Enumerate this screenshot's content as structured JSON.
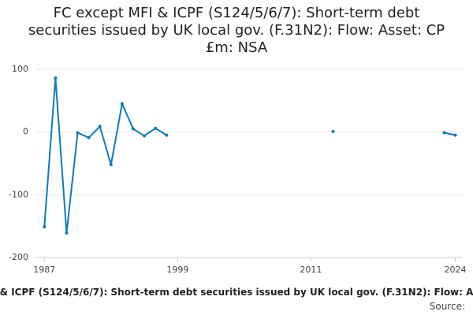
{
  "chart_data": {
    "type": "line",
    "title": "FC except MFI & ICPF (S124/5/6/7): Short-term debt securities issued by UK local gov. (F.31N2): Flow: Asset: CP £m: NSA",
    "caption": "& ICPF (S124/5/6/7): Short-term debt securities issued by UK local gov. (F.31N2): Flow: A",
    "source": "Source:",
    "x": [
      1987,
      1988,
      1989,
      1990,
      1991,
      1992,
      1993,
      1994,
      1995,
      1996,
      1997,
      1998,
      1999,
      2000,
      2001,
      2002,
      2003,
      2004,
      2005,
      2006,
      2007,
      2008,
      2009,
      2010,
      2011,
      2012,
      2013,
      2014,
      2015,
      2016,
      2017,
      2018,
      2019,
      2020,
      2021,
      2022,
      2023,
      2024
    ],
    "series": [
      {
        "color": "#0b7bbd",
        "values": [
          -151,
          86,
          -161,
          -1,
          -9,
          9,
          -52,
          45,
          5,
          -6,
          6,
          -5,
          null,
          null,
          null,
          null,
          null,
          null,
          null,
          null,
          null,
          null,
          null,
          null,
          null,
          null,
          1,
          null,
          null,
          null,
          null,
          null,
          null,
          null,
          null,
          null,
          -1,
          -5
        ]
      }
    ],
    "xlim": [
      1986.2,
      2024.6
    ],
    "xticks": [
      1987,
      1999,
      2011,
      2024
    ],
    "ylim": [
      -200,
      100
    ],
    "yticks": [
      -200,
      -100,
      0,
      100
    ],
    "grid": true
  }
}
